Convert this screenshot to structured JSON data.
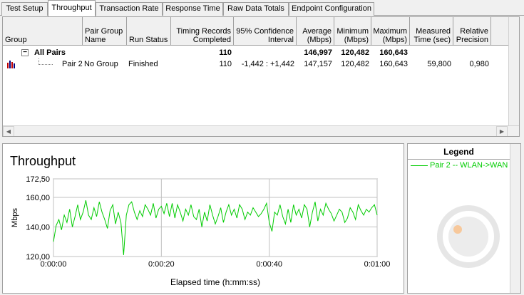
{
  "tabs": [
    "Test Setup",
    "Throughput",
    "Transaction Rate",
    "Response Time",
    "Raw Data Totals",
    "Endpoint Configuration"
  ],
  "active_tab": 1,
  "table": {
    "headers": [
      "Group",
      "Pair Group\nName",
      "Run Status",
      "Timing Records\nCompleted",
      "95% Confidence\nInterval",
      "Average\n(Mbps)",
      "Minimum\n(Mbps)",
      "Maximum\n(Mbps)",
      "Measured\nTime (sec)",
      "Relative\nPrecision"
    ],
    "summary_row": {
      "expander": "−",
      "group": "All Pairs",
      "records": "110",
      "average": "146,997",
      "minimum": "120,482",
      "maximum": "160,643"
    },
    "pair_row": {
      "group": "Pair 2",
      "pair_group_name": "No Group",
      "run_status": "Finished",
      "records": "110",
      "confidence": "-1,442 : +1,442",
      "average": "147,157",
      "minimum": "120,482",
      "maximum": "160,643",
      "measured_time": "59,800",
      "precision": "0,980"
    }
  },
  "chart": {
    "title": "Throughput",
    "ylabel": "Mbps",
    "xlabel": "Elapsed time (h:mm:ss)",
    "y_ticks": [
      "172,50",
      "160,00",
      "140,00",
      "120,00"
    ],
    "x_ticks": [
      "0:00:00",
      "0:00:20",
      "0:00:40",
      "0:01:00"
    ]
  },
  "legend": {
    "title": "Legend",
    "items": [
      "Pair 2 -- WLAN->WAN"
    ]
  },
  "colors": {
    "series": "#00cc00",
    "grid": "#c0c0c0"
  },
  "chart_data": {
    "type": "line",
    "title": "Throughput",
    "xlabel": "Elapsed time (h:mm:ss)",
    "ylabel": "Mbps",
    "xlim": [
      0,
      60
    ],
    "ylim": [
      120,
      172.5
    ],
    "y_ticks": [
      120,
      140,
      160,
      172.5
    ],
    "x_ticks": [
      "0:00:00",
      "0:00:20",
      "0:00:40",
      "0:01:00"
    ],
    "series": [
      {
        "name": "Pair 2 -- WLAN->WAN",
        "color": "#00cc00",
        "x": [
          0,
          0.5,
          1,
          1.5,
          2,
          2.5,
          3,
          3.5,
          4,
          4.5,
          5,
          5.5,
          6,
          6.5,
          7,
          7.5,
          8,
          8.5,
          9,
          9.5,
          10,
          10.5,
          11,
          11.5,
          12,
          12.5,
          13,
          13.5,
          14,
          14.5,
          15,
          15.5,
          16,
          16.5,
          17,
          17.5,
          18,
          18.5,
          19,
          19.5,
          20,
          20.5,
          21,
          21.5,
          22,
          22.5,
          23,
          23.5,
          24,
          24.5,
          25,
          25.5,
          26,
          26.5,
          27,
          27.5,
          28,
          28.5,
          29,
          29.5,
          30,
          30.5,
          31,
          31.5,
          32,
          32.5,
          33,
          33.5,
          34,
          34.5,
          35,
          35.5,
          36,
          36.5,
          37,
          37.5,
          38,
          38.5,
          39,
          39.5,
          40,
          40.5,
          41,
          41.5,
          42,
          42.5,
          43,
          43.5,
          44,
          44.5,
          45,
          45.5,
          46,
          46.5,
          47,
          47.5,
          48,
          48.5,
          49,
          49.5,
          50,
          50.5,
          51,
          51.5,
          52,
          52.5,
          53,
          53.5,
          54,
          54.5,
          55,
          55.5,
          56,
          56.5,
          57,
          57.5,
          58,
          58.5,
          59,
          59.5,
          60
        ],
        "values": [
          130,
          141,
          145,
          138,
          148,
          143,
          152,
          140,
          147,
          155,
          145,
          150,
          158,
          148,
          145,
          153,
          147,
          157,
          150,
          145,
          139,
          151,
          155,
          142,
          150,
          143,
          121,
          148,
          155,
          157,
          150,
          145,
          151,
          147,
          155,
          152,
          148,
          156,
          146,
          152,
          154,
          149,
          156,
          147,
          156,
          146,
          155,
          150,
          144,
          152,
          148,
          155,
          147,
          145,
          152,
          140,
          150,
          144,
          155,
          148,
          142,
          147,
          153,
          143,
          150,
          155,
          148,
          152,
          146,
          155,
          152,
          145,
          150,
          148,
          153,
          150,
          147,
          149,
          152,
          156,
          143,
          137,
          150,
          148,
          155,
          147,
          142,
          152,
          143,
          155,
          148,
          152,
          146,
          155,
          152,
          140,
          150,
          157,
          144,
          152,
          148,
          156,
          152,
          149,
          144,
          148,
          152,
          150,
          143,
          146,
          153,
          150,
          145,
          155,
          151,
          148,
          152,
          150,
          153,
          155,
          148
        ]
      }
    ]
  }
}
